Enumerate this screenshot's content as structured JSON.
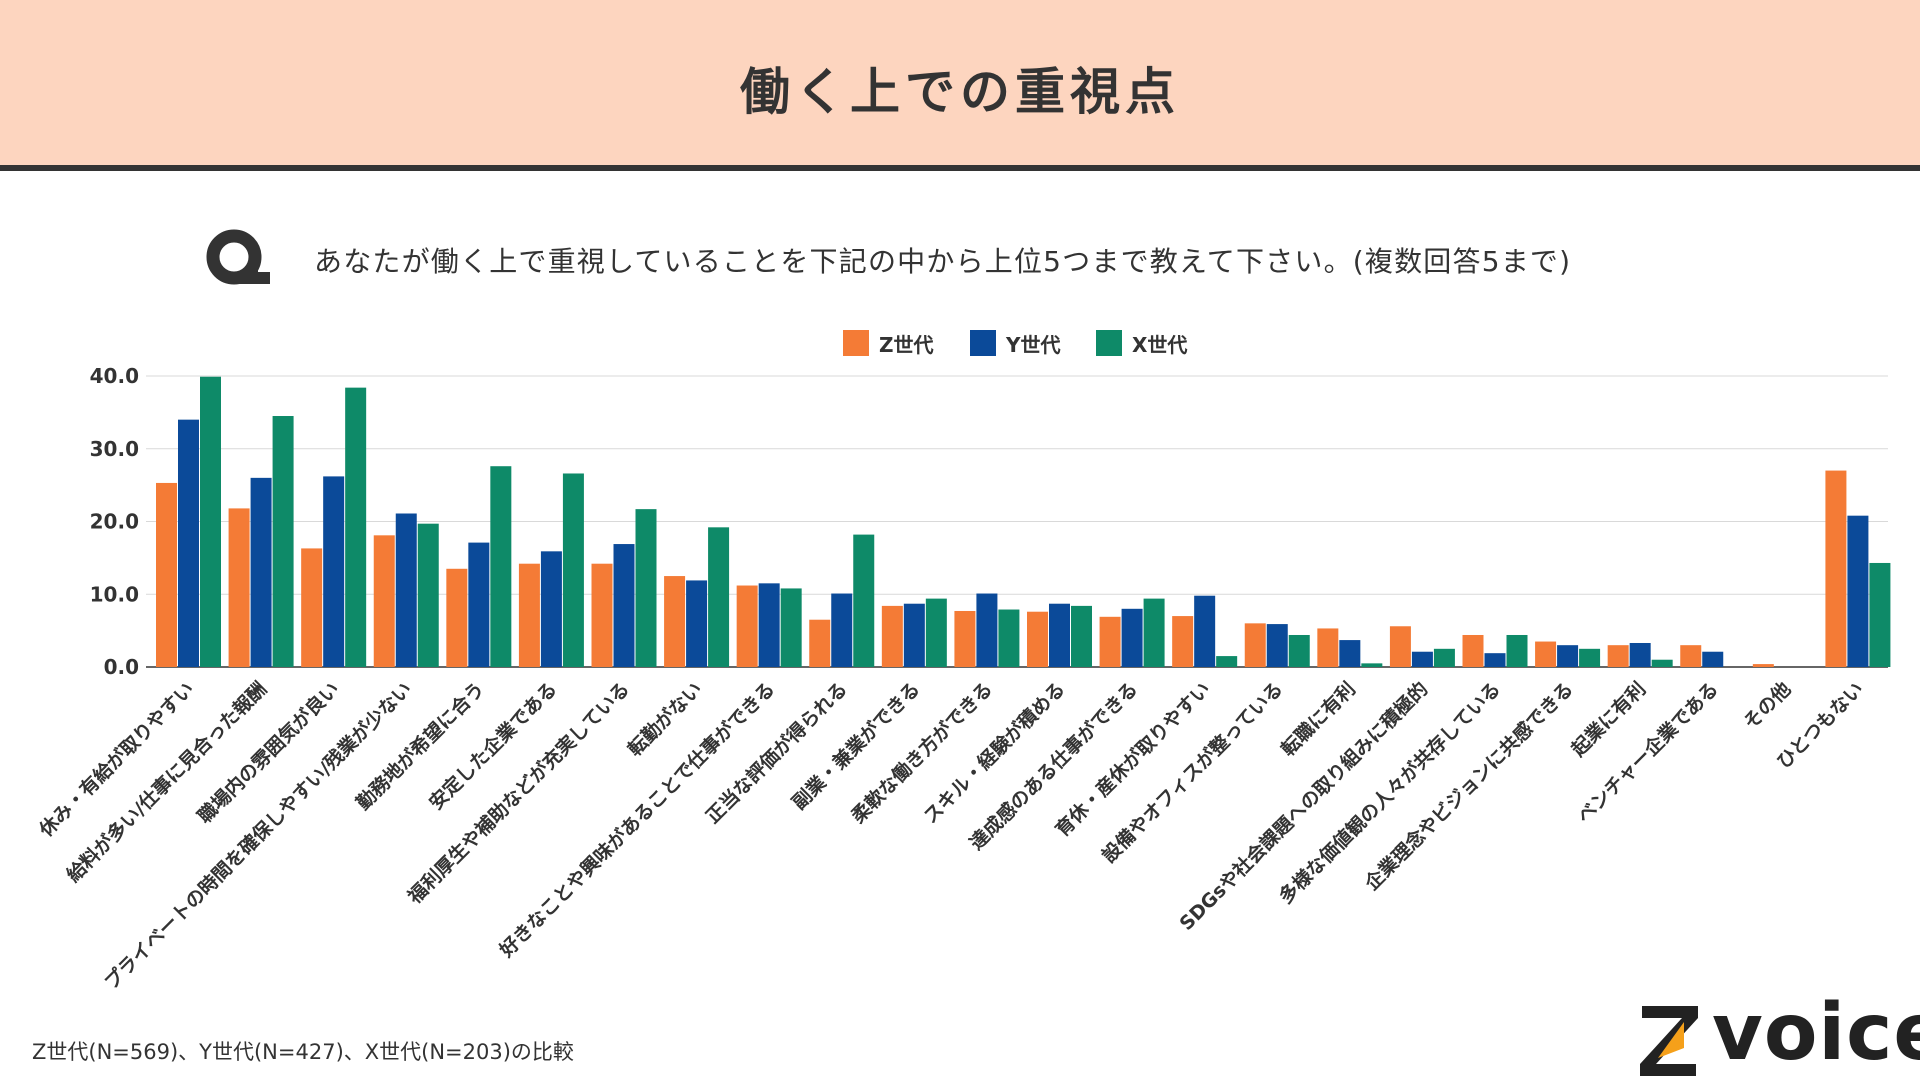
{
  "header": {
    "title": "働く上での重視点"
  },
  "question": {
    "icon": "Q",
    "text": "あなたが働く上で重視していることを下記の中から上位5つまで教えて下さい。(複数回答5まで)"
  },
  "footnote": "Z世代(N=569)、Y世代(N=427)、X世代(N=203)の比較",
  "logo": {
    "text": "voice",
    "mark": "Z"
  },
  "colors": {
    "z": "#f47b36",
    "y": "#0b4a99",
    "x": "#0e8a68",
    "header_bg": "#fdd5bf",
    "grid": "#d9d9d9",
    "text": "#333333"
  },
  "chart_data": {
    "type": "bar",
    "title": "",
    "xlabel": "",
    "ylabel": "",
    "ylim": [
      0,
      40
    ],
    "yticks": [
      "0.0",
      "10.0",
      "20.0",
      "30.0",
      "40.0"
    ],
    "legend_position": "top-center",
    "grid": true,
    "categories": [
      "休み・有給が取りやすい",
      "給料が多い/仕事に見合った報酬",
      "職場内の雰囲気が良い",
      "プライベートの時間を確保しやすい/残業が少ない",
      "勤務地が希望に合う",
      "安定した企業である",
      "福利厚生や補助などが充実している",
      "転勤がない",
      "好きなことや興味があることで仕事ができる",
      "正当な評価が得られる",
      "副業・兼業ができる",
      "柔軟な働き方ができる",
      "スキル・経験が積める",
      "達成感のある仕事ができる",
      "育休・産休が取りやすい",
      "設備やオフィスが整っている",
      "転職に有利",
      "SDGsや社会課題への取り組みに積極的",
      "多様な価値観の人々が共存している",
      "企業理念やビジョンに共感できる",
      "起業に有利",
      "ベンチャー企業である",
      "その他",
      "ひとつもない"
    ],
    "series": [
      {
        "name": "Z世代",
        "color": "#f47b36",
        "values": [
          25.3,
          21.8,
          16.3,
          18.1,
          13.5,
          14.2,
          14.2,
          12.5,
          11.2,
          6.5,
          8.4,
          7.7,
          7.6,
          6.9,
          7.0,
          6.0,
          5.3,
          5.6,
          4.4,
          3.5,
          3.0,
          3.0,
          0.4,
          27.0
        ]
      },
      {
        "name": "Y世代",
        "color": "#0b4a99",
        "values": [
          34.0,
          26.0,
          26.2,
          21.1,
          17.1,
          15.9,
          16.9,
          11.9,
          11.5,
          10.1,
          8.7,
          10.1,
          8.7,
          8.0,
          9.8,
          5.9,
          3.7,
          2.1,
          1.9,
          3.0,
          3.3,
          2.1,
          0.0,
          20.8
        ]
      },
      {
        "name": "X世代",
        "color": "#0e8a68",
        "values": [
          39.9,
          34.5,
          38.4,
          19.7,
          27.6,
          26.6,
          21.7,
          19.2,
          10.8,
          18.2,
          9.4,
          7.9,
          8.4,
          9.4,
          1.5,
          4.4,
          0.5,
          2.5,
          4.4,
          2.5,
          1.0,
          0.0,
          0.0,
          14.3
        ]
      }
    ]
  }
}
